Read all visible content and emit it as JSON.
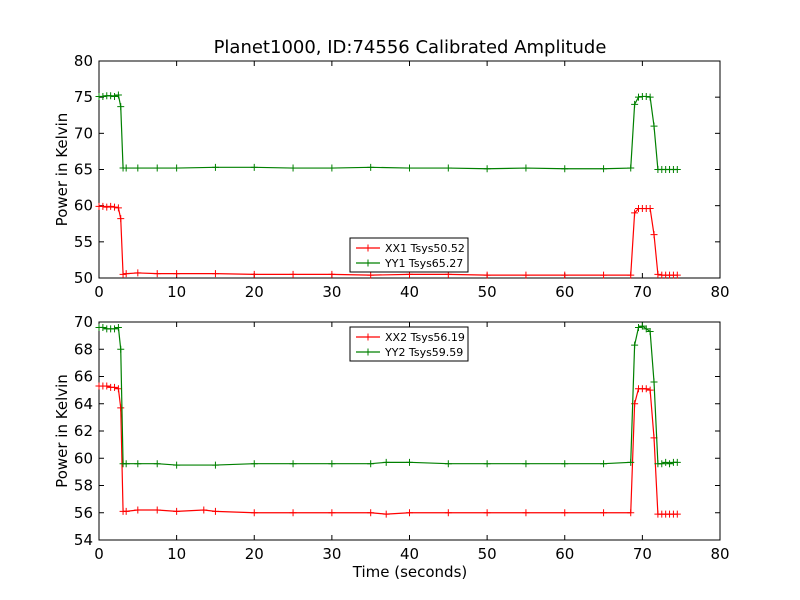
{
  "figure": {
    "title": "Planet1000, ID:74556 Calibrated Amplitude",
    "xlabel": "Time (seconds)"
  },
  "colors": {
    "red": "#ff0000",
    "green": "#008000"
  },
  "chart_data": [
    {
      "type": "line",
      "ylabel": "Power in Kelvin",
      "xlim": [
        0,
        80
      ],
      "ylim": [
        50,
        80
      ],
      "xticks": [
        0,
        10,
        20,
        30,
        40,
        50,
        60,
        70,
        80
      ],
      "yticks": [
        50,
        55,
        60,
        65,
        70,
        75,
        80
      ],
      "legend_position": "lower-center",
      "series": [
        {
          "name": "XX1 Tsys50.52",
          "color": "#ff0000",
          "x": [
            0,
            0.5,
            1,
            1.5,
            2,
            2.5,
            2.8,
            3.1,
            3.5,
            5,
            7.5,
            10,
            15,
            20,
            25,
            30,
            35,
            40,
            45,
            50,
            55,
            60,
            65,
            68.5,
            69,
            69.5,
            70,
            70.5,
            71,
            71.5,
            72,
            72.5,
            73,
            73.5,
            74,
            74.5
          ],
          "y": [
            59.9,
            59.9,
            59.8,
            59.9,
            59.8,
            59.7,
            58.2,
            50.5,
            50.6,
            50.7,
            50.6,
            50.6,
            50.6,
            50.5,
            50.5,
            50.5,
            50.4,
            50.5,
            50.5,
            50.4,
            50.4,
            50.4,
            50.4,
            50.4,
            59.0,
            59.6,
            59.6,
            59.6,
            59.6,
            56.0,
            50.5,
            50.4,
            50.4,
            50.4,
            50.4,
            50.4
          ]
        },
        {
          "name": "YY1 Tsys65.27",
          "color": "#008000",
          "x": [
            0,
            0.5,
            1,
            1.5,
            2,
            2.5,
            2.8,
            3.1,
            3.5,
            5,
            7.5,
            10,
            15,
            20,
            25,
            30,
            35,
            40,
            45,
            50,
            55,
            60,
            65,
            68.5,
            69,
            69.5,
            70,
            70.5,
            71,
            71.5,
            72,
            72.5,
            73,
            73.5,
            74,
            74.5
          ],
          "y": [
            75.1,
            75.1,
            75.2,
            75.2,
            75.1,
            75.3,
            73.7,
            65.2,
            65.2,
            65.2,
            65.2,
            65.2,
            65.3,
            65.3,
            65.2,
            65.2,
            65.3,
            65.2,
            65.2,
            65.1,
            65.2,
            65.1,
            65.1,
            65.2,
            74.0,
            75.0,
            75.1,
            75.1,
            75.0,
            71.0,
            65.0,
            65.0,
            65.0,
            65.0,
            65.0,
            65.0
          ]
        }
      ]
    },
    {
      "type": "line",
      "ylabel": "Power in Kelvin",
      "xlabel": "Time (seconds)",
      "xlim": [
        0,
        80
      ],
      "ylim": [
        54,
        70
      ],
      "xticks": [
        0,
        10,
        20,
        30,
        40,
        50,
        60,
        70,
        80
      ],
      "yticks": [
        54,
        56,
        58,
        60,
        62,
        64,
        66,
        68,
        70
      ],
      "legend_position": "upper-center",
      "series": [
        {
          "name": "XX2 Tsys56.19",
          "color": "#ff0000",
          "x": [
            0,
            0.5,
            1,
            1.5,
            2,
            2.5,
            2.8,
            3.1,
            3.5,
            5,
            7.5,
            10,
            13.5,
            15,
            20,
            25,
            30,
            35,
            37,
            40,
            45,
            50,
            55,
            60,
            65,
            68.5,
            69,
            69.5,
            70,
            70.5,
            71,
            71.5,
            72,
            72.5,
            73,
            73.5,
            74,
            74.5
          ],
          "y": [
            65.3,
            65.3,
            65.3,
            65.2,
            65.2,
            65.1,
            63.7,
            56.1,
            56.1,
            56.2,
            56.2,
            56.1,
            56.2,
            56.1,
            56.0,
            56.0,
            56.0,
            56.0,
            55.9,
            56.0,
            56.0,
            56.0,
            56.0,
            56.0,
            56.0,
            56.0,
            64.0,
            65.1,
            65.1,
            65.1,
            65.0,
            61.5,
            55.9,
            55.9,
            55.9,
            55.9,
            55.9,
            55.9
          ]
        },
        {
          "name": "YY2 Tsys59.59",
          "color": "#008000",
          "x": [
            0,
            0.5,
            1,
            1.5,
            2,
            2.5,
            2.8,
            3.1,
            3.5,
            5,
            7.5,
            10,
            15,
            20,
            25,
            30,
            35,
            37,
            40,
            45,
            50,
            55,
            60,
            65,
            68.5,
            69,
            69.5,
            70,
            70.5,
            71,
            71.5,
            72,
            72.5,
            73,
            73.5,
            74,
            74.5
          ],
          "y": [
            69.6,
            69.6,
            69.5,
            69.5,
            69.5,
            69.6,
            68.0,
            59.6,
            59.6,
            59.6,
            59.6,
            59.5,
            59.5,
            59.6,
            59.6,
            59.6,
            59.6,
            59.7,
            59.7,
            59.6,
            59.6,
            59.6,
            59.6,
            59.6,
            59.7,
            68.3,
            69.6,
            69.7,
            69.5,
            69.3,
            65.6,
            59.6,
            59.6,
            59.7,
            59.6,
            59.7,
            59.7
          ]
        }
      ]
    }
  ]
}
